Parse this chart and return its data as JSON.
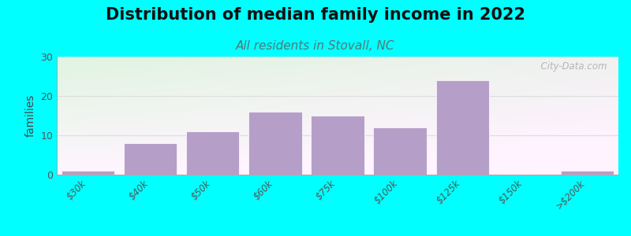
{
  "title": "Distribution of median family income in 2022",
  "subtitle": "All residents in Stovall, NC",
  "ylabel": "families",
  "categories": [
    "$30k",
    "$40k",
    "$50k",
    "$60k",
    "$75k",
    "$100k",
    "$125k",
    "$150k",
    ">$200k"
  ],
  "values": [
    1,
    8,
    11,
    16,
    15,
    12,
    24,
    0,
    1
  ],
  "bar_color": "#b59fc8",
  "background_color": "#00ffff",
  "ylim": [
    0,
    30
  ],
  "yticks": [
    0,
    10,
    20,
    30
  ],
  "title_fontsize": 15,
  "subtitle_fontsize": 11,
  "ylabel_fontsize": 10,
  "watermark": "  City-Data.com",
  "subtitle_color": "#557777",
  "title_color": "#111111",
  "grid_color": "#dddddd",
  "tick_label_color": "#555555"
}
